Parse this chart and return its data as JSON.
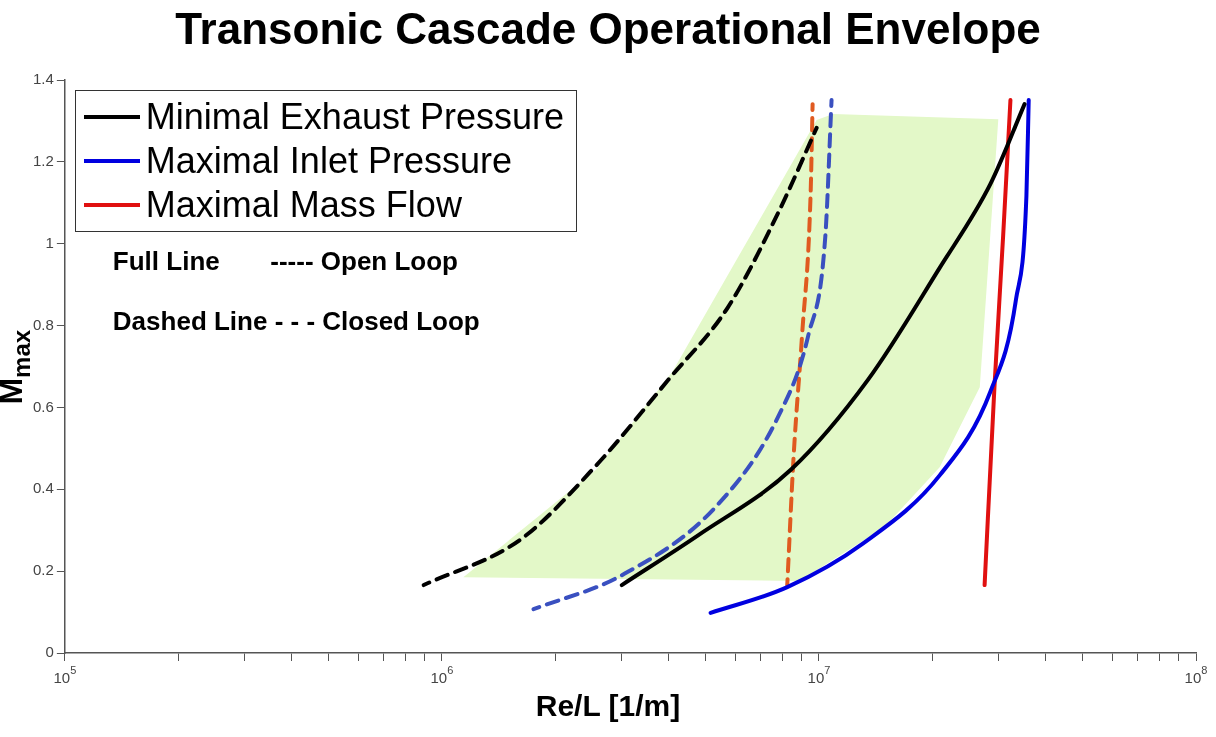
{
  "chart_data": {
    "type": "line",
    "title": "Transonic Cascade Operational Envelope",
    "xlabel": "Re/L [1/m]",
    "ylabel": "M$_{max}$",
    "log": "x",
    "grid": false,
    "legend": "top left",
    "marker": "none",
    "xlim": [
      100000,
      100000000
    ],
    "ylim": [
      0,
      1.4
    ],
    "xticks": [
      {
        "value": 100000,
        "label": "10$^{5}$"
      },
      {
        "value": 200000,
        "label": null
      },
      {
        "value": 300000,
        "label": null
      },
      {
        "value": 400000,
        "label": null
      },
      {
        "value": 500000,
        "label": null
      },
      {
        "value": 600000,
        "label": null
      },
      {
        "value": 700000,
        "label": null
      },
      {
        "value": 800000,
        "label": null
      },
      {
        "value": 900000,
        "label": null
      },
      {
        "value": 1000000,
        "label": "10$^{6}$"
      },
      {
        "value": 2000000,
        "label": null
      },
      {
        "value": 3000000,
        "label": null
      },
      {
        "value": 4000000,
        "label": null
      },
      {
        "value": 5000000,
        "label": null
      },
      {
        "value": 6000000,
        "label": null
      },
      {
        "value": 7000000,
        "label": null
      },
      {
        "value": 8000000,
        "label": null
      },
      {
        "value": 9000000,
        "label": null
      },
      {
        "value": 10000000,
        "label": "10$^{7}$"
      },
      {
        "value": 20000000,
        "label": null
      },
      {
        "value": 30000000,
        "label": null
      },
      {
        "value": 40000000,
        "label": null
      },
      {
        "value": 50000000,
        "label": null
      },
      {
        "value": 60000000,
        "label": null
      },
      {
        "value": 70000000,
        "label": null
      },
      {
        "value": 80000000,
        "label": null
      },
      {
        "value": 90000000,
        "label": null
      },
      {
        "value": 100000000,
        "label": "10$^{8}$"
      }
    ],
    "yticks": [
      0,
      0.2,
      0.4,
      0.6,
      0.8,
      1,
      1.2,
      1.4
    ],
    "annotations": [
      "Full Line       ----- Open Loop",
      "Dashed Line - - - Closed Loop"
    ],
    "series": [
      {
        "type": "area",
        "color": "#e3f8c8",
        "x": [
          1140000,
          2570000,
          4090000,
          9860000,
          10900000,
          29900000,
          26700000,
          20900000,
          14900000,
          8890000
        ],
        "values": [
          0.185,
          0.449,
          0.688,
          1.302,
          1.317,
          1.304,
          0.649,
          0.454,
          0.307,
          0.176
        ]
      },
      {
        "name": "Minimal Exhaust Pressure",
        "color": "#000000",
        "line_style": "solid",
        "x": [
          3000000,
          4790000,
          8450000,
          13500000,
          20900000,
          28500000,
          35100000
        ],
        "values": [
          0.166,
          0.288,
          0.449,
          0.668,
          0.941,
          1.146,
          1.341
        ]
      },
      {
        "name": "Maximal Inlet Pressure",
        "color": "#0000e0",
        "line_style": "solid",
        "x": [
          5160000,
          8240000,
          13100000,
          20900000,
          28500000,
          33300000,
          35500000,
          36000000
        ],
        "values": [
          0.098,
          0.161,
          0.268,
          0.434,
          0.639,
          0.863,
          1.117,
          1.351
        ]
      },
      {
        "name": "Maximal Mass Flow",
        "color": "#e01010",
        "line_style": "solid",
        "x": [
          27500000,
          29200000,
          30800000,
          32200000
        ],
        "values": [
          0.166,
          0.649,
          1.02,
          1.351
        ]
      },
      {
        "color": "#000000",
        "line_style": "dashed",
        "x": [
          895000,
          1620000,
          2570000,
          3990000,
          5730000,
          7820000,
          9860000
        ],
        "values": [
          0.166,
          0.278,
          0.459,
          0.668,
          0.844,
          1.078,
          1.283
        ]
      },
      {
        "color": "#3a50c0",
        "line_style": "dashed",
        "x": [
          1750000,
          3000000,
          5310000,
          7820000,
          9370000,
          10400000,
          10800000
        ],
        "values": [
          0.107,
          0.19,
          0.356,
          0.58,
          0.776,
          1.02,
          1.351
        ]
      },
      {
        "color": "#e05a20",
        "line_style": "dashed",
        "x": [
          8240000,
          8570000,
          9020000,
          9500000,
          9620000
        ],
        "values": [
          0.166,
          0.483,
          0.776,
          1.117,
          1.341
        ]
      }
    ]
  }
}
